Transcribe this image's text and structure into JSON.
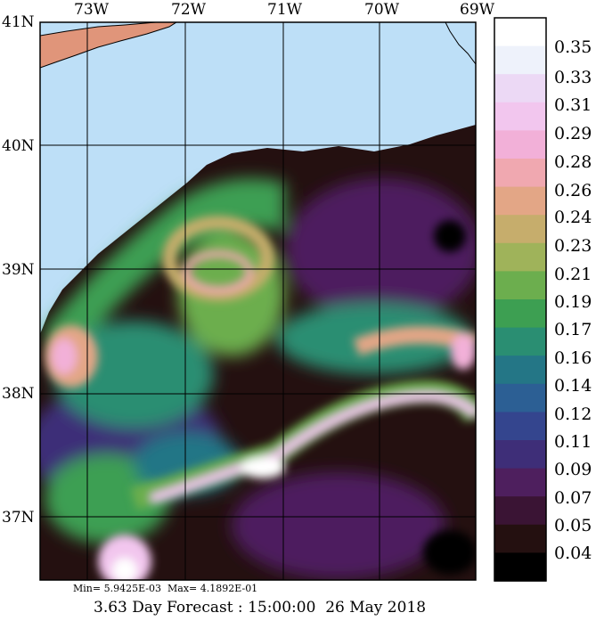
{
  "map": {
    "lon_labels": [
      "73W",
      "72W",
      "71W",
      "70W",
      "69W"
    ],
    "lat_labels": [
      "41N",
      "40N",
      "39N",
      "38N",
      "37N"
    ],
    "colors": {
      "land": "#e0957a",
      "shelf_water": "#bddff7",
      "coast_outline": "#000000"
    }
  },
  "colorbar": {
    "labels": [
      "0.35",
      "0.33",
      "0.31",
      "0.29",
      "0.28",
      "0.26",
      "0.24",
      "0.23",
      "0.21",
      "0.19",
      "0.17",
      "0.16",
      "0.14",
      "0.12",
      "0.11",
      "0.09",
      "0.07",
      "0.05",
      "0.04"
    ],
    "colors": [
      "#ffffff",
      "#eef2fb",
      "#ecd9f5",
      "#f2c6ee",
      "#f2b0d8",
      "#f0a8b0",
      "#e3a686",
      "#c6ad6c",
      "#9fb35a",
      "#6cae4e",
      "#3d9f52",
      "#2a8e72",
      "#247686",
      "#2c5f94",
      "#34458e",
      "#3e2e78",
      "#4e1f5e",
      "#3a1434",
      "#241010",
      "#000000"
    ],
    "background_color": "#241010"
  },
  "stats": {
    "text": "Min= 5.9425E-03  Max= 4.1892E-01"
  },
  "footer": {
    "text": "3.63 Day Forecast : 15:00:00  26 May 2018"
  }
}
